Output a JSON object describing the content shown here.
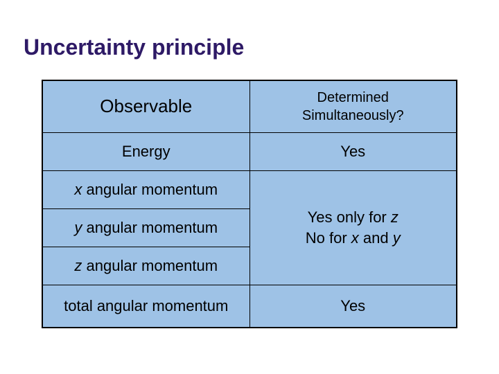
{
  "title": "Uncertainty principle",
  "table": {
    "background_color": "#9ec2e6",
    "border_color": "#000000",
    "title_color": "#2e1a66",
    "text_color": "#000000",
    "header": {
      "left": "Observable",
      "right_line1": "Determined",
      "right_line2": "Simultaneously?"
    },
    "rows": {
      "energy": {
        "label": "Energy",
        "value": "Yes"
      },
      "x_momentum": {
        "prefix": "x",
        "label": " angular momentum"
      },
      "y_momentum": {
        "prefix": "y",
        "label": " angular momentum"
      },
      "z_momentum": {
        "prefix": "z",
        "label": " angular momentum"
      },
      "merged_value": {
        "line1_prefix": "Yes only for ",
        "line1_var": "z",
        "line2_prefix": "No for ",
        "line2_var1": "x",
        "line2_mid": " and ",
        "line2_var2": "y"
      },
      "total": {
        "label": "total angular momentum",
        "value": "Yes"
      }
    }
  }
}
